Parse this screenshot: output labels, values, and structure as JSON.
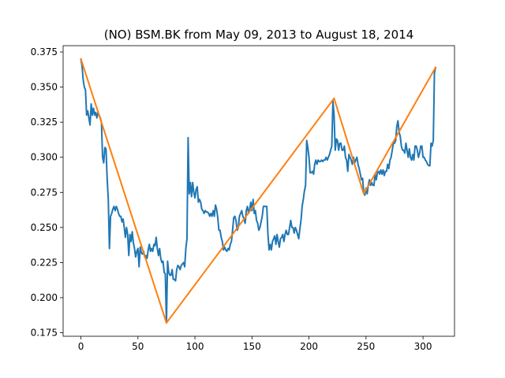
{
  "chart_data": {
    "type": "line",
    "title": "(NO) BSM.BK from May 09, 2013 to August 18, 2014",
    "xlabel": "",
    "ylabel": "",
    "xlim": [
      -15.6,
      327.6
    ],
    "ylim": [
      0.1725,
      0.3795
    ],
    "x_ticks": [
      0,
      50,
      100,
      150,
      200,
      250,
      300
    ],
    "x_tick_labels": [
      "0",
      "50",
      "100",
      "150",
      "200",
      "250",
      "300"
    ],
    "y_ticks": [
      0.175,
      0.2,
      0.225,
      0.25,
      0.275,
      0.3,
      0.325,
      0.35,
      0.375
    ],
    "y_tick_labels": [
      "0.175",
      "0.200",
      "0.225",
      "0.250",
      "0.275",
      "0.300",
      "0.325",
      "0.350",
      "0.375"
    ],
    "grid": false,
    "legend": "none",
    "colors": {
      "price": "#1f77b4",
      "zigzag": "#ff7f0e"
    },
    "series": [
      {
        "key": "price",
        "x": [
          0,
          1,
          2,
          3,
          4,
          5,
          6,
          7,
          8,
          9,
          10,
          11,
          12,
          13,
          14,
          15,
          16,
          17,
          18,
          19,
          20,
          21,
          22,
          23,
          24,
          25,
          26,
          27,
          28,
          29,
          30,
          31,
          32,
          33,
          34,
          35,
          36,
          37,
          38,
          39,
          40,
          41,
          42,
          43,
          44,
          45,
          46,
          47,
          48,
          49,
          50,
          51,
          52,
          53,
          54,
          55,
          56,
          57,
          58,
          59,
          60,
          61,
          62,
          63,
          64,
          65,
          66,
          67,
          68,
          69,
          70,
          71,
          72,
          73,
          74,
          75,
          76,
          77,
          78,
          79,
          80,
          81,
          82,
          83,
          84,
          85,
          86,
          87,
          88,
          89,
          90,
          91,
          92,
          93,
          94,
          95,
          96,
          97,
          98,
          99,
          100,
          101,
          102,
          103,
          104,
          105,
          106,
          107,
          108,
          109,
          110,
          111,
          112,
          113,
          114,
          115,
          116,
          117,
          118,
          119,
          120,
          121,
          122,
          123,
          124,
          125,
          126,
          127,
          128,
          129,
          130,
          131,
          132,
          133,
          134,
          135,
          136,
          137,
          138,
          139,
          140,
          141,
          142,
          143,
          144,
          145,
          146,
          147,
          148,
          149,
          150,
          151,
          152,
          153,
          154,
          155,
          156,
          157,
          158,
          159,
          160,
          161,
          162,
          163,
          164,
          165,
          166,
          167,
          168,
          169,
          170,
          171,
          172,
          173,
          174,
          175,
          176,
          177,
          178,
          179,
          180,
          181,
          182,
          183,
          184,
          185,
          186,
          187,
          188,
          189,
          190,
          191,
          192,
          193,
          194,
          195,
          196,
          197,
          198,
          199,
          200,
          201,
          202,
          203,
          204,
          205,
          206,
          207,
          208,
          209,
          210,
          211,
          212,
          213,
          214,
          215,
          216,
          217,
          218,
          219,
          220,
          221,
          222,
          223,
          224,
          225,
          226,
          227,
          228,
          229,
          230,
          231,
          232,
          233,
          234,
          235,
          236,
          237,
          238,
          239,
          240,
          241,
          242,
          243,
          244,
          245,
          246,
          247,
          248,
          249,
          250,
          251,
          252,
          253,
          254,
          255,
          256,
          257,
          258,
          259,
          260,
          261,
          262,
          263,
          264,
          265,
          266,
          267,
          268,
          269,
          270,
          271,
          272,
          273,
          274,
          275,
          276,
          277,
          278,
          279,
          280,
          281,
          282,
          283,
          284,
          285,
          286,
          287,
          288,
          289,
          290,
          291,
          292,
          293,
          294,
          295,
          296,
          297,
          298,
          299,
          300,
          301,
          302,
          303,
          304,
          305,
          306,
          307,
          308,
          309,
          310,
          311
        ],
        "y": [
          0.37,
          0.365,
          0.355,
          0.35,
          0.348,
          0.33,
          0.333,
          0.328,
          0.323,
          0.338,
          0.33,
          0.335,
          0.33,
          0.332,
          0.328,
          0.332,
          0.33,
          0.328,
          0.325,
          0.3,
          0.296,
          0.307,
          0.306,
          0.285,
          0.27,
          0.235,
          0.258,
          0.26,
          0.263,
          0.265,
          0.262,
          0.265,
          0.263,
          0.26,
          0.258,
          0.258,
          0.254,
          0.256,
          0.25,
          0.243,
          0.25,
          0.245,
          0.23,
          0.245,
          0.24,
          0.247,
          0.239,
          0.235,
          0.229,
          0.233,
          0.235,
          0.222,
          0.236,
          0.232,
          0.231,
          0.233,
          0.229,
          0.23,
          0.228,
          0.234,
          0.238,
          0.233,
          0.235,
          0.233,
          0.238,
          0.237,
          0.243,
          0.235,
          0.23,
          0.235,
          0.228,
          0.225,
          0.226,
          0.218,
          0.217,
          0.182,
          0.226,
          0.218,
          0.216,
          0.216,
          0.22,
          0.213,
          0.213,
          0.212,
          0.22,
          0.223,
          0.222,
          0.22,
          0.223,
          0.224,
          0.225,
          0.222,
          0.235,
          0.242,
          0.314,
          0.274,
          0.282,
          0.272,
          0.282,
          0.275,
          0.271,
          0.277,
          0.279,
          0.268,
          0.27,
          0.268,
          0.263,
          0.262,
          0.26,
          0.262,
          0.261,
          0.261,
          0.26,
          0.258,
          0.26,
          0.258,
          0.262,
          0.258,
          0.266,
          0.263,
          0.257,
          0.248,
          0.248,
          0.243,
          0.24,
          0.234,
          0.236,
          0.234,
          0.233,
          0.235,
          0.234,
          0.238,
          0.24,
          0.248,
          0.257,
          0.258,
          0.255,
          0.248,
          0.25,
          0.258,
          0.26,
          0.262,
          0.258,
          0.256,
          0.253,
          0.262,
          0.265,
          0.26,
          0.263,
          0.268,
          0.262,
          0.27,
          0.26,
          0.262,
          0.255,
          0.253,
          0.248,
          0.25,
          0.254,
          0.258,
          0.265,
          0.265,
          0.265,
          0.265,
          0.245,
          0.234,
          0.238,
          0.234,
          0.24,
          0.242,
          0.244,
          0.238,
          0.245,
          0.24,
          0.236,
          0.242,
          0.243,
          0.245,
          0.24,
          0.245,
          0.248,
          0.245,
          0.245,
          0.25,
          0.255,
          0.25,
          0.25,
          0.246,
          0.25,
          0.248,
          0.245,
          0.242,
          0.249,
          0.255,
          0.265,
          0.27,
          0.276,
          0.28,
          0.312,
          0.307,
          0.3,
          0.289,
          0.289,
          0.29,
          0.288,
          0.295,
          0.298,
          0.295,
          0.298,
          0.297,
          0.297,
          0.298,
          0.297,
          0.298,
          0.298,
          0.3,
          0.298,
          0.3,
          0.302,
          0.305,
          0.308,
          0.34,
          0.33,
          0.305,
          0.313,
          0.312,
          0.305,
          0.31,
          0.31,
          0.305,
          0.305,
          0.308,
          0.3,
          0.298,
          0.29,
          0.302,
          0.3,
          0.298,
          0.295,
          0.3,
          0.296,
          0.298,
          0.3,
          0.295,
          0.292,
          0.288,
          0.284,
          0.285,
          0.275,
          0.273,
          0.278,
          0.274,
          0.28,
          0.284,
          0.28,
          0.282,
          0.28,
          0.28,
          0.288,
          0.284,
          0.289,
          0.29,
          0.288,
          0.291,
          0.288,
          0.291,
          0.287,
          0.29,
          0.29,
          0.295,
          0.292,
          0.298,
          0.3,
          0.305,
          0.31,
          0.31,
          0.312,
          0.322,
          0.326,
          0.318,
          0.315,
          0.308,
          0.305,
          0.305,
          0.303,
          0.31,
          0.305,
          0.3,
          0.306,
          0.3,
          0.298,
          0.302,
          0.298,
          0.308,
          0.308,
          0.305,
          0.3,
          0.303,
          0.308,
          0.308,
          0.3,
          0.3,
          0.298,
          0.297,
          0.295,
          0.294,
          0.294,
          0.31,
          0.308,
          0.312,
          0.36,
          0.364
        ]
      },
      {
        "key": "zigzag",
        "x": [
          0,
          75,
          222,
          248,
          311
        ],
        "y": [
          0.37,
          0.182,
          0.342,
          0.274,
          0.364
        ]
      }
    ]
  }
}
